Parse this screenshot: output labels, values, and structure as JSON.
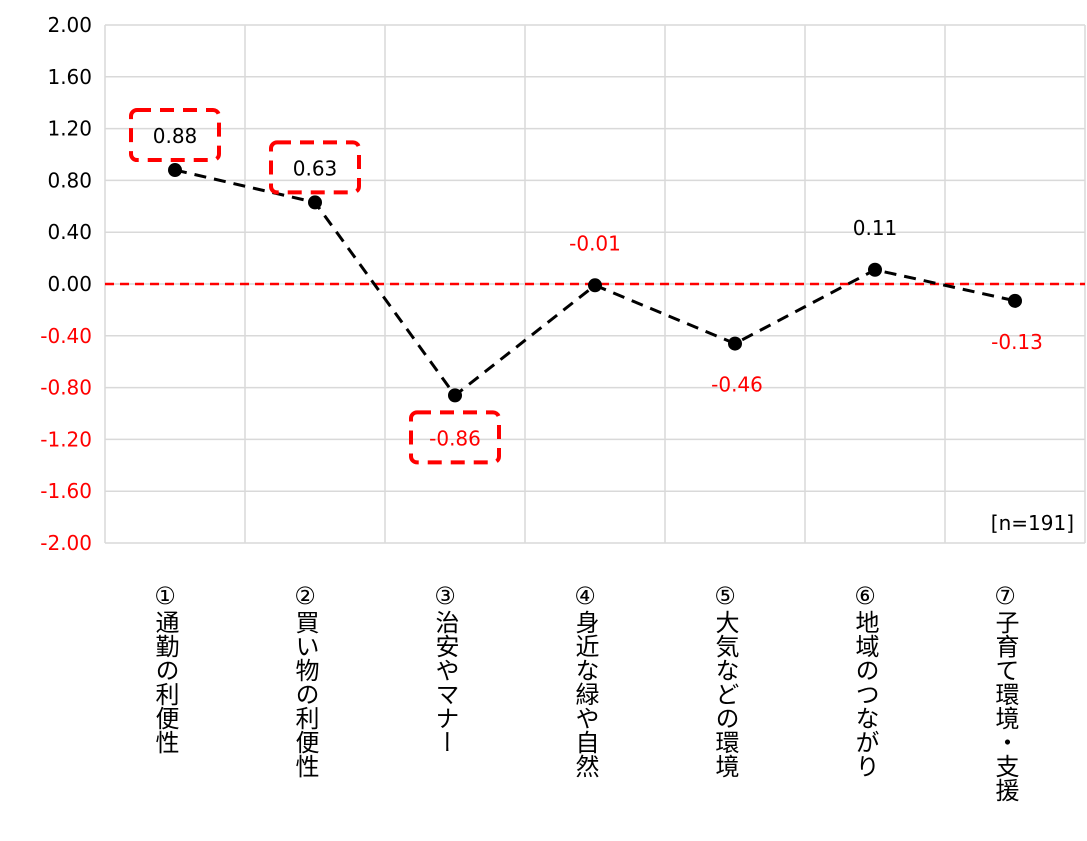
{
  "chart_data": {
    "type": "line",
    "categories": [
      "①通勤の利便性",
      "②買い物の利便性",
      "③治安やマナー",
      "④身近な緑や自然",
      "⑤大気などの環境",
      "⑥地域のつながり",
      "⑦子育て環境・支援"
    ],
    "series": [
      {
        "values": [
          0.88,
          0.63,
          -0.86,
          -0.01,
          -0.46,
          0.11,
          -0.13
        ]
      }
    ],
    "data_labels": [
      "0.88",
      "0.63",
      "-0.86",
      "-0.01",
      "-0.46",
      "0.11",
      "-0.13"
    ],
    "highlighted": [
      true,
      true,
      true,
      false,
      false,
      false,
      false
    ],
    "yticks": [
      "2.00",
      "1.60",
      "1.20",
      "0.80",
      "0.40",
      "0.00",
      "-0.40",
      "-0.80",
      "-1.20",
      "-1.60",
      "-2.00"
    ],
    "ylim": [
      -2.0,
      2.0
    ],
    "reference_line": 0.0,
    "grid": true,
    "note": "[n=191]",
    "colors": {
      "positive": "#000000",
      "negative": "#ff0000",
      "series_line": "#000000",
      "reference_line": "#ff0000",
      "highlight_box": "#ff0000",
      "grid": "#d9d9d9"
    }
  }
}
